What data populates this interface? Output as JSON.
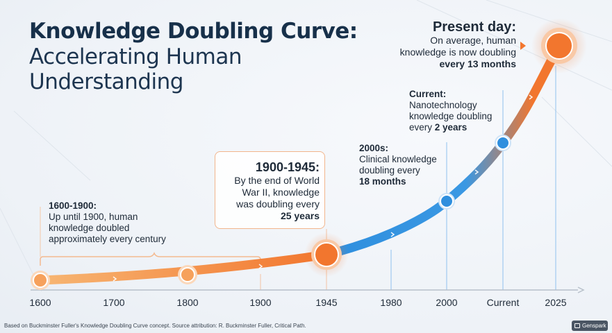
{
  "title": {
    "line1": "Knowledge Doubling Curve:",
    "line2": "Accelerating Human",
    "line3": "Understanding"
  },
  "colors": {
    "orange": "#f2762e",
    "blue": "#2f8fde",
    "navy": "#17304a"
  },
  "chart_data": {
    "type": "line",
    "title": "Knowledge Doubling Curve: Accelerating Human Understanding",
    "x_ticks": [
      "1600",
      "1700",
      "1800",
      "1900",
      "1945",
      "1980",
      "2000",
      "Current",
      "2025"
    ],
    "points": [
      {
        "x": "1600",
        "label": "1600-1900 start"
      },
      {
        "x": "1800",
        "label": "1800"
      },
      {
        "x": "1945",
        "label": "1945"
      },
      {
        "x": "2000",
        "label": "2000s"
      },
      {
        "x": "Current",
        "label": "Current"
      },
      {
        "x": "2025",
        "label": "Present day"
      }
    ],
    "doubling_time": [
      {
        "period": "1600-1900",
        "value": "approximately every century"
      },
      {
        "period": "1900-1945",
        "value": "25 years"
      },
      {
        "period": "2000s",
        "value": "18 months"
      },
      {
        "period": "Current",
        "value": "2 years"
      },
      {
        "period": "Present day",
        "value": "13 months"
      }
    ],
    "grid": false
  },
  "annotations": {
    "a1600": {
      "head": "1600-1900:",
      "l1": "Up until 1900, human",
      "l2": "knowledge doubled",
      "l3": "approximately every century"
    },
    "a1945": {
      "head": "1900-1945:",
      "l1": "By the end of World",
      "l2": "War II, knowledge",
      "l3": "was doubling every",
      "l4": "25 years"
    },
    "a2000": {
      "head": "2000s:",
      "l1": "Clinical knowledge",
      "l2": "doubling every",
      "l3": "18 months"
    },
    "acur": {
      "head": "Current:",
      "l1": "Nanotechnology",
      "l2": "knowledge doubling",
      "l3": "every ",
      "l3b": "2 years"
    },
    "apres": {
      "head": "Present day:",
      "l1": "On average, human",
      "l2": "knowledge is now doubling",
      "l3": "every 13 months"
    }
  },
  "footer": "Based on Buckminster Fuller's Knowledge Doubling Curve concept. Source attribution: R. Buckminster Fuller, Critical Path.",
  "badge": {
    "label": "Genspark",
    "icon": "genspark-icon"
  }
}
